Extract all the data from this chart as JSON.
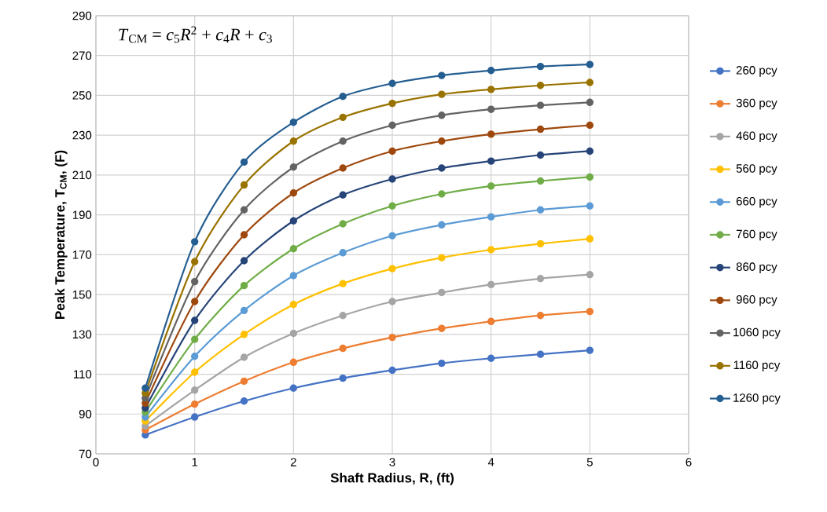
{
  "chart_data": {
    "type": "line",
    "xlabel": "Shaft Radius, R, (ft)",
    "ylabel": "Peak Temperature, T$_{CM}$, (F)",
    "annotations": [
      "*T*$_{CM}$ = *c*$_{5}$*R*$^{2}$ + *c*$_{4}$*R* + *c*$_{3}$"
    ],
    "x": [
      0.5,
      1,
      1.5,
      2,
      2.5,
      3,
      3.5,
      4,
      4.5,
      5
    ],
    "series": [
      {
        "name": "260 pcy",
        "color": "#4472c4",
        "values": [
          79.5,
          88.5,
          96.5,
          103,
          108,
          112,
          115.5,
          118,
          120,
          122
        ]
      },
      {
        "name": "360 pcy",
        "color": "#ed7d31",
        "values": [
          82,
          95,
          106.5,
          116,
          123,
          128.5,
          133,
          136.5,
          139.5,
          141.5
        ]
      },
      {
        "name": "460 pcy",
        "color": "#a5a5a5",
        "values": [
          84,
          102,
          118.5,
          130.5,
          139.5,
          146.5,
          151,
          155,
          158,
          160
        ]
      },
      {
        "name": "560 pcy",
        "color": "#ffc000",
        "values": [
          86.5,
          111,
          130,
          145,
          155.5,
          163,
          168.5,
          172.5,
          175.5,
          178
        ]
      },
      {
        "name": "660 pcy",
        "color": "#5b9bd5",
        "values": [
          88.5,
          119,
          142,
          159.5,
          171,
          179.5,
          185,
          189,
          192.5,
          194.5
        ]
      },
      {
        "name": "760 pcy",
        "color": "#70ad47",
        "values": [
          91,
          127.5,
          154.5,
          173,
          185.5,
          194.5,
          200.5,
          204.5,
          207,
          209
        ]
      },
      {
        "name": "860 pcy",
        "color": "#264478",
        "values": [
          93,
          137,
          167,
          187,
          200,
          208,
          213.5,
          217,
          220,
          222
        ]
      },
      {
        "name": "960 pcy",
        "color": "#9e480e",
        "values": [
          95.5,
          146.5,
          180,
          201,
          213.5,
          222,
          227,
          230.5,
          233,
          235
        ]
      },
      {
        "name": "1060 pcy",
        "color": "#636363",
        "values": [
          98,
          156.5,
          192.5,
          214,
          227,
          235,
          240,
          243,
          245,
          246.5
        ]
      },
      {
        "name": "1160 pcy",
        "color": "#997300",
        "values": [
          100.5,
          166.5,
          205,
          227,
          239,
          246,
          250.5,
          253,
          255,
          256.5
        ]
      },
      {
        "name": "1260 pcy",
        "color": "#255e91",
        "values": [
          103,
          176.5,
          216.5,
          236.5,
          249.5,
          256,
          260,
          262.5,
          264.5,
          265.5
        ]
      }
    ],
    "xlim": [
      0,
      6
    ],
    "xticks": [
      0,
      1,
      2,
      3,
      4,
      5,
      6
    ],
    "ylim": [
      70,
      290
    ],
    "yticks": [
      70,
      90,
      110,
      130,
      150,
      170,
      190,
      210,
      230,
      250,
      270,
      290
    ],
    "grid": true,
    "legend": "right",
    "marker": "circle",
    "line_style": "solid"
  }
}
